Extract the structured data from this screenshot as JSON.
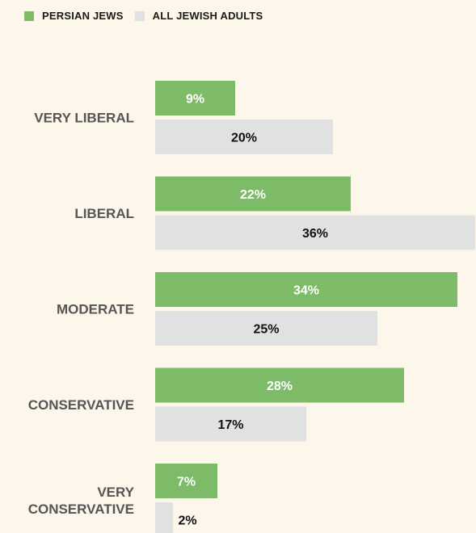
{
  "legend": {
    "items": [
      {
        "label": "PERSIAN JEWS",
        "color": "#7dbb68"
      },
      {
        "label": "ALL JEWISH ADULTS",
        "color": "#e1e1e1"
      }
    ]
  },
  "chart_data": {
    "type": "bar",
    "orientation": "horizontal",
    "title": "",
    "xlabel": "",
    "ylabel": "",
    "xlim": [
      0,
      36
    ],
    "grid": false,
    "legend_position": "top-left",
    "categories": [
      "VERY LIBERAL",
      "LIBERAL",
      "MODERATE",
      "CONSERVATIVE",
      "VERY CONSERVATIVE"
    ],
    "category_lines": [
      [
        "VERY LIBERAL"
      ],
      [
        "LIBERAL"
      ],
      [
        "MODERATE"
      ],
      [
        "CONSERVATIVE"
      ],
      [
        "VERY",
        "CONSERVATIVE"
      ]
    ],
    "series": [
      {
        "name": "PERSIAN JEWS",
        "color": "#7dbb68",
        "label_color": "#ffffff",
        "values": [
          9,
          22,
          34,
          28,
          7
        ],
        "labels": [
          "9%",
          "22%",
          "34%",
          "28%",
          "7%"
        ]
      },
      {
        "name": "ALL JEWISH ADULTS",
        "color": "#e1e1e1",
        "label_color": "#111111",
        "values": [
          20,
          36,
          25,
          17,
          2
        ],
        "labels": [
          "20%",
          "36%",
          "25%",
          "17%",
          "2%"
        ]
      }
    ]
  }
}
